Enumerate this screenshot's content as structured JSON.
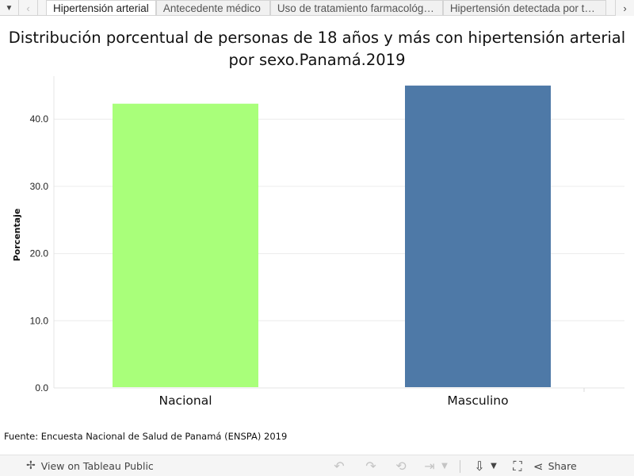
{
  "tabbar": {
    "menu_icon": "caret-down-icon",
    "prev_icon": "chevron-left-icon",
    "next_icon": "chevron-right-icon",
    "tabs": [
      {
        "label": "Hipertensión arterial",
        "active": true
      },
      {
        "label": "Antecedente médico",
        "active": false
      },
      {
        "label": "Uso de tratamiento farmacológico",
        "active": false
      },
      {
        "label": "Hipertensión detectada por tercera vez",
        "active": false
      }
    ]
  },
  "chart_title": "Distribución porcentual de personas de 18 años y más con hipertensión arterial  por sexo.Panamá.2019",
  "chart_data": {
    "type": "bar",
    "title": "Distribución porcentual de personas de 18 años y más con hipertensión arterial  por sexo.Panamá.2019",
    "categories": [
      "Nacional",
      "Masculino"
    ],
    "values": [
      42.3,
      45.0
    ],
    "colors": [
      "#a9ff7a",
      "#4e79a7"
    ],
    "xlabel": "",
    "ylabel": "Porcentaje",
    "ylim": [
      0,
      47
    ],
    "yticks": [
      0,
      10,
      20,
      30,
      40
    ],
    "ytick_labels": [
      "0.0",
      "10.0",
      "20.0",
      "30.0",
      "40.0"
    ],
    "grid": true
  },
  "source": "Fuente: Encuesta Nacional de Salud de Panamá (ENSPA) 2019",
  "toolbar": {
    "view_label": "View on Tableau Public",
    "share_label": "Share"
  }
}
